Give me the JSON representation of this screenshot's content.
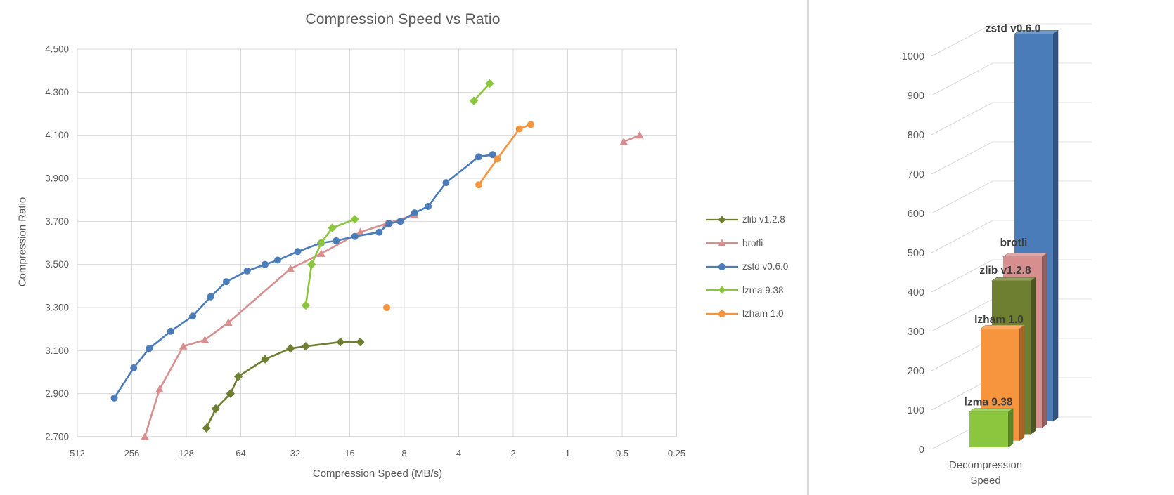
{
  "chart_data": [
    {
      "type": "line",
      "title": "Compression Speed vs Ratio",
      "xlabel": "Compression Speed (MB/s)",
      "ylabel": "Compression Ratio",
      "x_scale": "log2-reversed",
      "x_ticks": [
        512,
        256,
        128,
        64,
        32,
        16,
        8,
        4,
        2,
        1,
        0.5,
        0.25
      ],
      "x_tick_labels": [
        "512",
        "256",
        "128",
        "64",
        "32",
        "16",
        "8",
        "4",
        "2",
        "1",
        "0.5",
        "0.25"
      ],
      "ylim": [
        2.7,
        4.5
      ],
      "y_tick_step": 0.2,
      "y_tick_labels": [
        "4.500",
        "4.300",
        "4.100",
        "3.900",
        "3.700",
        "3.500",
        "3.300",
        "3.100",
        "2.900",
        "2.700"
      ],
      "grid": true,
      "legend_position": "right",
      "series": [
        {
          "name": "zlib v1.2.8",
          "color": "#6E7F31",
          "marker": "diamond",
          "segments": [
            [
              [
                99,
                2.74
              ],
              [
                88,
                2.83
              ],
              [
                73,
                2.9
              ],
              [
                66,
                2.98
              ],
              [
                47,
                3.06
              ],
              [
                34,
                3.11
              ],
              [
                28,
                3.12
              ],
              [
                18,
                3.14
              ],
              [
                14,
                3.14
              ]
            ]
          ]
        },
        {
          "name": "brotli",
          "color": "#D68F8E",
          "marker": "triangle",
          "segments": [
            [
              [
                217,
                2.7
              ],
              [
                180,
                2.92
              ],
              [
                133,
                3.12
              ],
              [
                101,
                3.15
              ],
              [
                75,
                3.23
              ],
              [
                34,
                3.48
              ],
              [
                23,
                3.55
              ],
              [
                14,
                3.65
              ],
              [
                10,
                3.69
              ],
              [
                7,
                3.73
              ]
            ],
            [
              [
                0.49,
                4.07
              ],
              [
                0.4,
                4.1
              ]
            ]
          ]
        },
        {
          "name": "zstd v0.6.0",
          "color": "#4A7CBA",
          "marker": "circle",
          "segments": [
            [
              [
                320,
                2.88
              ],
              [
                250,
                3.02
              ],
              [
                205,
                3.11
              ],
              [
                156,
                3.19
              ],
              [
                118,
                3.26
              ],
              [
                94,
                3.35
              ],
              [
                77,
                3.42
              ],
              [
                59,
                3.47
              ],
              [
                47,
                3.5
              ],
              [
                40,
                3.52
              ],
              [
                31,
                3.56
              ],
              [
                23,
                3.6
              ],
              [
                19,
                3.61
              ],
              [
                15,
                3.63
              ],
              [
                11,
                3.65
              ],
              [
                9.7,
                3.69
              ],
              [
                8.4,
                3.7
              ],
              [
                7,
                3.74
              ],
              [
                5.9,
                3.77
              ],
              [
                4.7,
                3.88
              ],
              [
                3.1,
                4.0
              ],
              [
                2.6,
                4.01
              ]
            ]
          ]
        },
        {
          "name": "lzma 9.38",
          "color": "#8CC63E",
          "marker": "diamond",
          "segments": [
            [
              [
                28,
                3.31
              ],
              [
                26,
                3.5
              ],
              [
                23,
                3.6
              ],
              [
                20,
                3.67
              ],
              [
                15,
                3.71
              ]
            ],
            [
              [
                3.3,
                4.26
              ],
              [
                2.7,
                4.34
              ]
            ]
          ]
        },
        {
          "name": "lzham 1.0",
          "color": "#F6953E",
          "marker": "circle",
          "segments": [
            [
              [
                10,
                3.3
              ]
            ],
            [
              [
                3.1,
                3.87
              ],
              [
                2.45,
                3.99
              ],
              [
                1.85,
                4.13
              ],
              [
                1.6,
                4.15
              ]
            ]
          ]
        }
      ]
    },
    {
      "type": "bar",
      "style": "3d-column",
      "xlabel": "Decompression Speed",
      "ylim": [
        0,
        1000
      ],
      "y_tick_step": 100,
      "y_tick_labels": [
        "0",
        "100",
        "200",
        "300",
        "400",
        "500",
        "600",
        "700",
        "800",
        "900",
        "1000"
      ],
      "categories_front_to_back": [
        "lzma 9.38",
        "lzham 1.0",
        "zlib v1.2.8",
        "brotli",
        "zstd v0.6.0"
      ],
      "values": [
        90,
        285,
        390,
        435,
        985
      ],
      "colors": [
        "#8CC63E",
        "#F6953E",
        "#6E7F31",
        "#D68F8E",
        "#4A7CBA"
      ]
    }
  ],
  "colors": {
    "grid": "#D9D9D9",
    "grid_back_wall": "#E3E3E3",
    "axis_line": "#BFBFBF",
    "text": "#595959",
    "bar_label_text": "#3F3F3F",
    "divider": "#D9D9D9"
  }
}
